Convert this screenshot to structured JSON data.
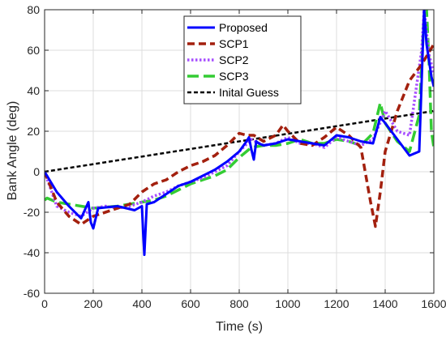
{
  "chart_data": {
    "type": "line",
    "xlabel": "Time (s)",
    "ylabel": "Bank Angle (deg)",
    "xlim": [
      0,
      1600
    ],
    "ylim": [
      -60,
      80
    ],
    "xticks": [
      0,
      200,
      400,
      600,
      800,
      1000,
      1200,
      1400,
      1600
    ],
    "yticks": [
      -60,
      -40,
      -20,
      0,
      20,
      40,
      60,
      80
    ],
    "grid": true,
    "legend_position": "top-center",
    "series": [
      {
        "name": "Proposed",
        "color": "#0000ff",
        "style": "solid",
        "x": [
          0,
          50,
          100,
          150,
          180,
          190,
          200,
          220,
          300,
          370,
          400,
          405,
          410,
          420,
          450,
          500,
          550,
          600,
          650,
          700,
          750,
          800,
          830,
          840,
          850,
          860,
          870,
          880,
          900,
          950,
          1000,
          1050,
          1100,
          1150,
          1200,
          1250,
          1300,
          1350,
          1380,
          1400,
          1450,
          1500,
          1540,
          1560,
          1570,
          1590,
          1600
        ],
        "y": [
          0,
          -10,
          -17,
          -23,
          -15,
          -25,
          -28,
          -18,
          -17,
          -19,
          -17,
          -30,
          -41,
          -16,
          -15,
          -11,
          -7,
          -5,
          -2,
          1,
          5,
          10,
          15,
          17,
          11,
          6,
          15,
          14,
          13,
          14,
          16,
          15,
          14,
          13,
          18,
          17,
          15,
          14,
          27,
          24,
          16,
          8,
          10,
          80,
          63,
          47,
          42
        ]
      },
      {
        "name": "SCP1",
        "color": "#a3200e",
        "style": "dashed",
        "x": [
          0,
          50,
          100,
          150,
          200,
          300,
          350,
          400,
          450,
          500,
          550,
          600,
          650,
          700,
          750,
          800,
          830,
          860,
          900,
          950,
          980,
          1000,
          1050,
          1100,
          1150,
          1200,
          1250,
          1300,
          1340,
          1360,
          1380,
          1400,
          1450,
          1500,
          1550,
          1600
        ],
        "y": [
          0,
          -15,
          -22,
          -26,
          -22,
          -18,
          -16,
          -10,
          -6,
          -4,
          0,
          3,
          5,
          8,
          13,
          19,
          18,
          18,
          15,
          18,
          23,
          20,
          14,
          13,
          17,
          22,
          18,
          12,
          -15,
          -27,
          -10,
          10,
          30,
          45,
          53,
          63
        ]
      },
      {
        "name": "SCP2",
        "color": "#a64dff",
        "style": "dotted",
        "x": [
          0,
          50,
          100,
          150,
          200,
          250,
          300,
          350,
          400,
          450,
          500,
          550,
          600,
          650,
          700,
          750,
          800,
          850,
          900,
          950,
          1000,
          1050,
          1100,
          1150,
          1200,
          1250,
          1300,
          1350,
          1400,
          1450,
          1500,
          1550,
          1560,
          1580,
          1600
        ],
        "y": [
          0,
          -17,
          -20,
          -22,
          -18,
          -17,
          -18,
          -17,
          -15,
          -12,
          -10,
          -7,
          -5,
          -3,
          0,
          3,
          10,
          16,
          13,
          14,
          17,
          14,
          14,
          12,
          17,
          15,
          13,
          16,
          30,
          20,
          18,
          60,
          80,
          58,
          48
        ]
      },
      {
        "name": "SCP3",
        "color": "#33cc33",
        "style": "dashed-long",
        "x": [
          0,
          10,
          50,
          100,
          150,
          200,
          300,
          350,
          400,
          450,
          500,
          550,
          600,
          650,
          700,
          750,
          800,
          850,
          900,
          950,
          1000,
          1050,
          1100,
          1150,
          1200,
          1250,
          1300,
          1350,
          1380,
          1400,
          1450,
          1500,
          1540,
          1560,
          1570,
          1580,
          1590,
          1600
        ],
        "y": [
          -14,
          -13,
          -15,
          -16,
          -17,
          -18,
          -17,
          -16,
          -15,
          -14,
          -12,
          -9,
          -6,
          -4,
          -2,
          1,
          7,
          12,
          13,
          13,
          14,
          16,
          14,
          14,
          16,
          15,
          13,
          19,
          34,
          24,
          15,
          10,
          28,
          78,
          80,
          55,
          20,
          12
        ]
      },
      {
        "name": "Inital Guess",
        "color": "#000000",
        "style": "short-dashed",
        "x": [
          0,
          1600
        ],
        "y": [
          0,
          30
        ]
      }
    ]
  }
}
